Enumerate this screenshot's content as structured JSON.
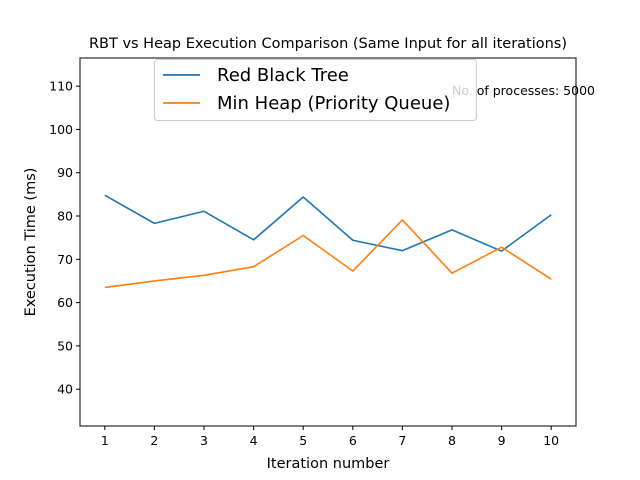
{
  "chart_data": {
    "type": "line",
    "title": "RBT vs Heap Execution Comparison (Same Input for all iterations)",
    "xlabel": "Iteration number",
    "ylabel": "Execution Time (ms)",
    "x": [
      1,
      2,
      3,
      4,
      5,
      6,
      7,
      8,
      9,
      10
    ],
    "xlim": [
      0.5,
      10.5
    ],
    "ylim": [
      31.5,
      116.5
    ],
    "xticks": [
      "1",
      "2",
      "3",
      "4",
      "5",
      "6",
      "7",
      "8",
      "9",
      "10"
    ],
    "yticks": [
      "40",
      "50",
      "60",
      "70",
      "80",
      "90",
      "100",
      "110"
    ],
    "grid": false,
    "legend_position": "top-center",
    "annotation": "No. of processes: 5000",
    "series": [
      {
        "name": "Red Black Tree",
        "color": "#1f77b4",
        "values": [
          84.8,
          78.3,
          81.1,
          74.5,
          84.4,
          74.4,
          72.0,
          76.8,
          71.9,
          80.3
        ]
      },
      {
        "name": "Min Heap (Priority Queue)",
        "color": "#ff7f0e",
        "values": [
          63.5,
          65.0,
          66.3,
          68.3,
          75.5,
          67.3,
          79.1,
          66.8,
          72.8,
          65.4
        ]
      }
    ]
  }
}
